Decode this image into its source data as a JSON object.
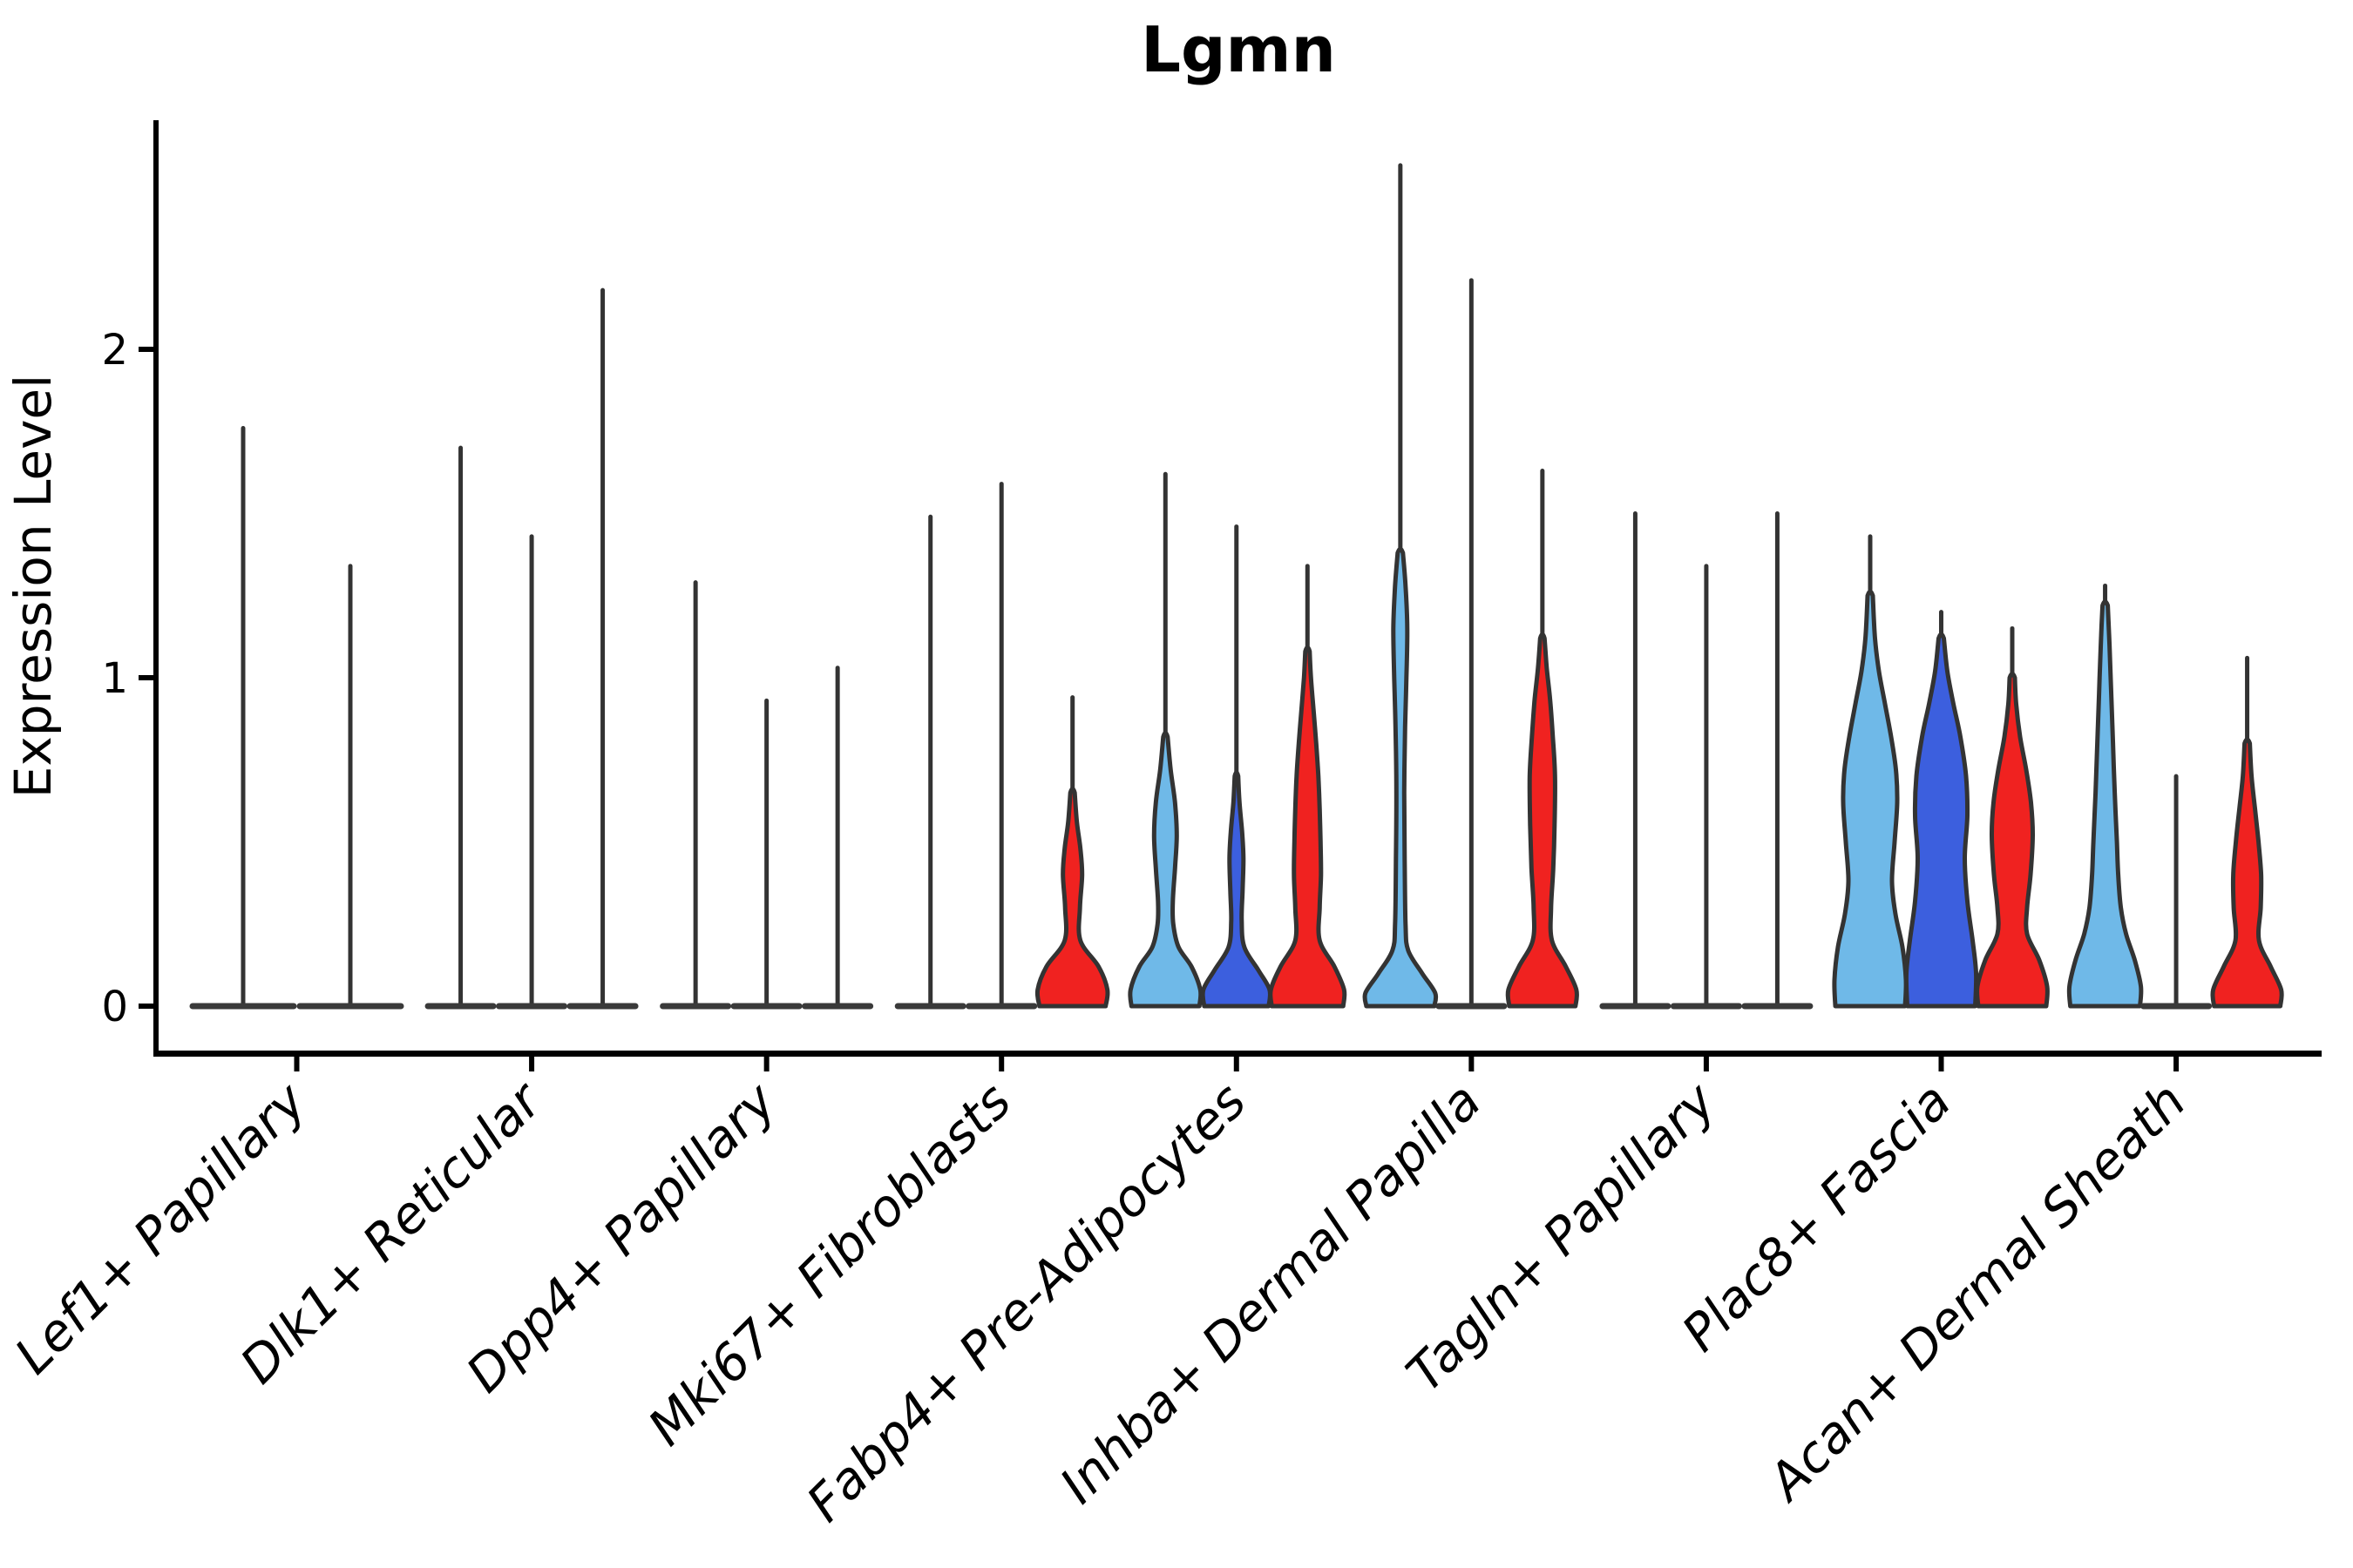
{
  "title": "Lgmn",
  "y_axis": {
    "label": "Expression Level",
    "ticks": [
      "0",
      "1",
      "2"
    ]
  },
  "chart_data": {
    "type": "violin",
    "title": "Lgmn",
    "xlabel": "",
    "ylabel": "Expression Level",
    "ylim": [
      0,
      2.7
    ],
    "yticks": [
      0,
      1,
      2
    ],
    "grid": false,
    "legend": "none",
    "palette": {
      "skyblue": "#6FB9E8",
      "royalblue": "#3C5FDE",
      "red": "#F02220",
      "collapsed": "#3A3A3A",
      "outline": "#333333"
    },
    "categories": [
      "Lef1+ Papillary",
      "Dlk1+ Reticular",
      "Dpp4+ Papillary",
      "Mki67+ Fibroblasts",
      "Fabp4+ Pre-Adipocytes",
      "Inhba+ Dermal Papilla",
      "Tagln+ Papillary",
      "Plac8+ Fascia",
      "Acan+ Dermal Sheath"
    ],
    "groups": [
      {
        "category": "Lef1+ Papillary",
        "violins": [
          {
            "offset": -61.5,
            "color": "collapsed",
            "half_width": 61.5,
            "max": 1.76,
            "profile": null
          },
          {
            "offset": 61.5,
            "color": "collapsed",
            "half_width": 61.5,
            "max": 1.34,
            "profile": null
          }
        ]
      },
      {
        "category": "Dlk1+ Reticular",
        "violins": [
          {
            "offset": -81.5,
            "color": "collapsed",
            "half_width": 41,
            "max": 1.7,
            "profile": null
          },
          {
            "offset": 0,
            "color": "collapsed",
            "half_width": 41,
            "max": 1.43,
            "profile": null
          },
          {
            "offset": 81.5,
            "color": "collapsed",
            "half_width": 41,
            "max": 2.18,
            "profile": null
          }
        ]
      },
      {
        "category": "Dpp4+ Papillary",
        "violins": [
          {
            "offset": -81.5,
            "color": "collapsed",
            "half_width": 41,
            "max": 1.29,
            "profile": null
          },
          {
            "offset": 0,
            "color": "collapsed",
            "half_width": 41,
            "max": 0.93,
            "profile": null
          },
          {
            "offset": 81.5,
            "color": "collapsed",
            "half_width": 41,
            "max": 1.03,
            "profile": null
          }
        ]
      },
      {
        "category": "Mki67+ Fibroblasts",
        "violins": [
          {
            "offset": -81.5,
            "color": "collapsed",
            "half_width": 41,
            "max": 1.49,
            "profile": null
          },
          {
            "offset": 0,
            "color": "collapsed",
            "half_width": 41,
            "max": 1.59,
            "profile": null
          },
          {
            "offset": 81.5,
            "color": "red",
            "max": 0.94,
            "profile": [
              [
                0,
                38
              ],
              [
                0.05,
                40
              ],
              [
                0.12,
                30
              ],
              [
                0.2,
                9
              ],
              [
                0.3,
                8.5
              ],
              [
                0.4,
                11
              ],
              [
                0.48,
                9
              ],
              [
                0.56,
                5
              ],
              [
                0.65,
                2.5
              ]
            ]
          }
        ]
      },
      {
        "category": "Fabp4+ Pre-Adipocytes",
        "violins": [
          {
            "offset": -81.5,
            "color": "skyblue",
            "max": 1.62,
            "profile": [
              [
                0,
                39
              ],
              [
                0.05,
                40
              ],
              [
                0.12,
                30
              ],
              [
                0.18,
                15
              ],
              [
                0.25,
                9
              ],
              [
                0.32,
                8.5
              ],
              [
                0.42,
                11
              ],
              [
                0.52,
                13
              ],
              [
                0.62,
                11
              ],
              [
                0.72,
                6
              ],
              [
                0.82,
                2.5
              ]
            ]
          },
          {
            "offset": 0,
            "color": "royalblue",
            "max": 1.46,
            "profile": [
              [
                0,
                37
              ],
              [
                0.05,
                38
              ],
              [
                0.11,
                25
              ],
              [
                0.18,
                9
              ],
              [
                0.26,
                6
              ],
              [
                0.35,
                7
              ],
              [
                0.45,
                8
              ],
              [
                0.53,
                6.5
              ],
              [
                0.62,
                3.5
              ],
              [
                0.7,
                2
              ]
            ]
          },
          {
            "offset": 81.5,
            "color": "red",
            "max": 1.34,
            "profile": [
              [
                0,
                41
              ],
              [
                0.05,
                42
              ],
              [
                0.12,
                31
              ],
              [
                0.2,
                14
              ],
              [
                0.3,
                14
              ],
              [
                0.4,
                15.5
              ],
              [
                0.5,
                15
              ],
              [
                0.6,
                14
              ],
              [
                0.7,
                12.5
              ],
              [
                0.8,
                10
              ],
              [
                0.9,
                7
              ],
              [
                1.0,
                4
              ],
              [
                1.08,
                2.5
              ]
            ]
          }
        ]
      },
      {
        "category": "Inhba+ Dermal Papilla",
        "violins": [
          {
            "offset": -81.5,
            "color": "skyblue",
            "max": 2.56,
            "profile": [
              [
                0,
                39
              ],
              [
                0.04,
                40
              ],
              [
                0.1,
                25
              ],
              [
                0.17,
                9
              ],
              [
                0.25,
                6
              ],
              [
                0.45,
                5
              ],
              [
                0.65,
                4.5
              ],
              [
                0.85,
                5.5
              ],
              [
                1.0,
                7
              ],
              [
                1.15,
                8
              ],
              [
                1.28,
                6
              ],
              [
                1.38,
                3
              ]
            ]
          },
          {
            "offset": 0,
            "color": "collapsed",
            "half_width": 41,
            "max": 2.21,
            "profile": null
          },
          {
            "offset": 81.5,
            "color": "red",
            "max": 1.63,
            "profile": [
              [
                0,
                38
              ],
              [
                0.05,
                39
              ],
              [
                0.12,
                27
              ],
              [
                0.2,
                11
              ],
              [
                0.3,
                10
              ],
              [
                0.42,
                12.5
              ],
              [
                0.55,
                14
              ],
              [
                0.7,
                14.5
              ],
              [
                0.82,
                12
              ],
              [
                0.93,
                9
              ],
              [
                1.03,
                5
              ],
              [
                1.12,
                2.5
              ]
            ]
          }
        ]
      },
      {
        "category": "Tagln+ Papillary",
        "violins": [
          {
            "offset": -81.5,
            "color": "collapsed",
            "half_width": 41,
            "max": 1.5,
            "profile": null
          },
          {
            "offset": 0,
            "color": "collapsed",
            "half_width": 41,
            "max": 1.34,
            "profile": null
          },
          {
            "offset": 81.5,
            "color": "collapsed",
            "half_width": 41,
            "max": 1.5,
            "profile": null
          }
        ]
      },
      {
        "category": "Plac8+ Fascia",
        "violins": [
          {
            "offset": -81.5,
            "color": "skyblue",
            "max": 1.43,
            "profile": [
              [
                0,
                40
              ],
              [
                0.08,
                41
              ],
              [
                0.18,
                37
              ],
              [
                0.28,
                29
              ],
              [
                0.38,
                25
              ],
              [
                0.5,
                28
              ],
              [
                0.62,
                31
              ],
              [
                0.72,
                29.5
              ],
              [
                0.82,
                24
              ],
              [
                0.92,
                17
              ],
              [
                1.02,
                10
              ],
              [
                1.12,
                5.5
              ],
              [
                1.25,
                3
              ]
            ]
          },
          {
            "offset": 0,
            "color": "royalblue",
            "max": 1.2,
            "profile": [
              [
                0,
                39
              ],
              [
                0.1,
                40
              ],
              [
                0.2,
                36
              ],
              [
                0.32,
                30
              ],
              [
                0.45,
                27
              ],
              [
                0.58,
                30
              ],
              [
                0.7,
                28.5
              ],
              [
                0.82,
                22
              ],
              [
                0.92,
                14
              ],
              [
                1.02,
                7
              ],
              [
                1.12,
                3
              ]
            ]
          },
          {
            "offset": 81.5,
            "color": "red",
            "max": 1.15,
            "profile": [
              [
                0,
                39
              ],
              [
                0.06,
                40
              ],
              [
                0.14,
                31
              ],
              [
                0.22,
                17
              ],
              [
                0.3,
                17
              ],
              [
                0.4,
                21
              ],
              [
                0.52,
                23.5
              ],
              [
                0.62,
                21.5
              ],
              [
                0.72,
                16
              ],
              [
                0.82,
                9
              ],
              [
                0.92,
                4.5
              ],
              [
                1.0,
                3
              ]
            ]
          }
        ]
      },
      {
        "category": "Acan+ Dermal Sheath",
        "violins": [
          {
            "offset": -81.5,
            "color": "skyblue",
            "max": 1.28,
            "profile": [
              [
                0,
                40
              ],
              [
                0.06,
                41
              ],
              [
                0.14,
                34
              ],
              [
                0.22,
                24
              ],
              [
                0.3,
                18
              ],
              [
                0.4,
                15
              ],
              [
                0.5,
                13.5
              ],
              [
                0.65,
                11
              ],
              [
                0.8,
                9
              ],
              [
                0.95,
                7
              ],
              [
                1.1,
                5
              ],
              [
                1.22,
                3
              ]
            ]
          },
          {
            "offset": 0,
            "color": "collapsed",
            "half_width": 41,
            "max": 0.7,
            "profile": null
          },
          {
            "offset": 81.5,
            "color": "red",
            "max": 1.06,
            "profile": [
              [
                0,
                38
              ],
              [
                0.05,
                39
              ],
              [
                0.12,
                27
              ],
              [
                0.2,
                13.5
              ],
              [
                0.3,
                15.5
              ],
              [
                0.4,
                16
              ],
              [
                0.5,
                13
              ],
              [
                0.6,
                9
              ],
              [
                0.7,
                5
              ],
              [
                0.8,
                3
              ]
            ]
          }
        ]
      }
    ]
  }
}
